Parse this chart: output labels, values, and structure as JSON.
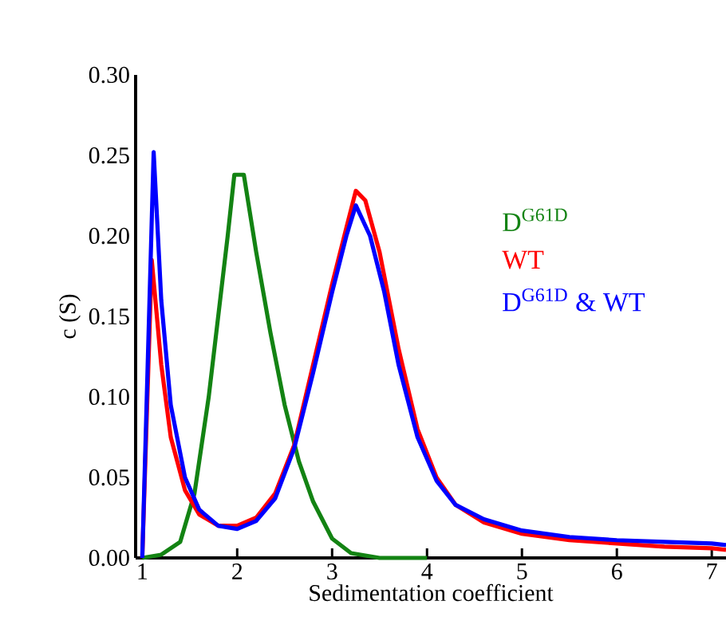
{
  "chart_data": {
    "type": "line",
    "xlabel": "Sedimentation coefficient",
    "ylabel": "c (S)",
    "xlim": [
      0.93,
      7.15
    ],
    "ylim": [
      0,
      0.3
    ],
    "xticks": [
      1,
      2,
      3,
      4,
      5,
      6,
      7
    ],
    "yticks": [
      {
        "value": 0,
        "label": "0.00"
      },
      {
        "value": 0.05,
        "label": "0.05"
      },
      {
        "value": 0.1,
        "label": "0.10"
      },
      {
        "value": 0.15,
        "label": "0.15"
      },
      {
        "value": 0.2,
        "label": "0.20"
      },
      {
        "value": 0.25,
        "label": "0.25"
      },
      {
        "value": 0.3,
        "label": "0.30"
      }
    ],
    "grid": false,
    "legend": "right",
    "marker": "none",
    "line_style": "solid",
    "series": [
      {
        "name": "D$^{G61D}$",
        "color": "#138313",
        "x": [
          1.0,
          1.2,
          1.4,
          1.55,
          1.7,
          1.8,
          1.9,
          1.97,
          2.07,
          2.2,
          2.35,
          2.5,
          2.65,
          2.8,
          3.0,
          3.2,
          3.5,
          4.0
        ],
        "values": [
          0,
          0.002,
          0.01,
          0.04,
          0.1,
          0.15,
          0.2,
          0.238,
          0.238,
          0.19,
          0.14,
          0.095,
          0.06,
          0.035,
          0.012,
          0.003,
          0,
          0
        ]
      },
      {
        "name": "WT",
        "color": "#ff0000",
        "x": [
          1.0,
          1.1,
          1.2,
          1.3,
          1.45,
          1.6,
          1.8,
          2.0,
          2.2,
          2.4,
          2.6,
          2.8,
          3.0,
          3.15,
          3.25,
          3.35,
          3.5,
          3.7,
          3.9,
          4.1,
          4.3,
          4.6,
          5.0,
          5.5,
          6.0,
          6.5,
          7.0,
          7.15
        ],
        "values": [
          0,
          0.185,
          0.12,
          0.075,
          0.042,
          0.027,
          0.02,
          0.02,
          0.025,
          0.04,
          0.07,
          0.12,
          0.17,
          0.205,
          0.228,
          0.222,
          0.19,
          0.13,
          0.08,
          0.05,
          0.033,
          0.022,
          0.015,
          0.011,
          0.009,
          0.007,
          0.006,
          0.005
        ]
      },
      {
        "name": "D$^{G61D}$ & WT",
        "color": "#0000ff",
        "x": [
          1.0,
          1.12,
          1.2,
          1.3,
          1.45,
          1.6,
          1.8,
          2.0,
          2.2,
          2.4,
          2.6,
          2.8,
          3.0,
          3.15,
          3.25,
          3.4,
          3.55,
          3.7,
          3.9,
          4.1,
          4.3,
          4.6,
          5.0,
          5.5,
          6.0,
          6.5,
          7.0,
          7.15
        ],
        "values": [
          0,
          0.252,
          0.16,
          0.095,
          0.05,
          0.03,
          0.02,
          0.018,
          0.023,
          0.037,
          0.068,
          0.115,
          0.165,
          0.2,
          0.219,
          0.2,
          0.165,
          0.12,
          0.075,
          0.048,
          0.033,
          0.024,
          0.017,
          0.013,
          0.011,
          0.01,
          0.009,
          0.008
        ]
      }
    ]
  }
}
